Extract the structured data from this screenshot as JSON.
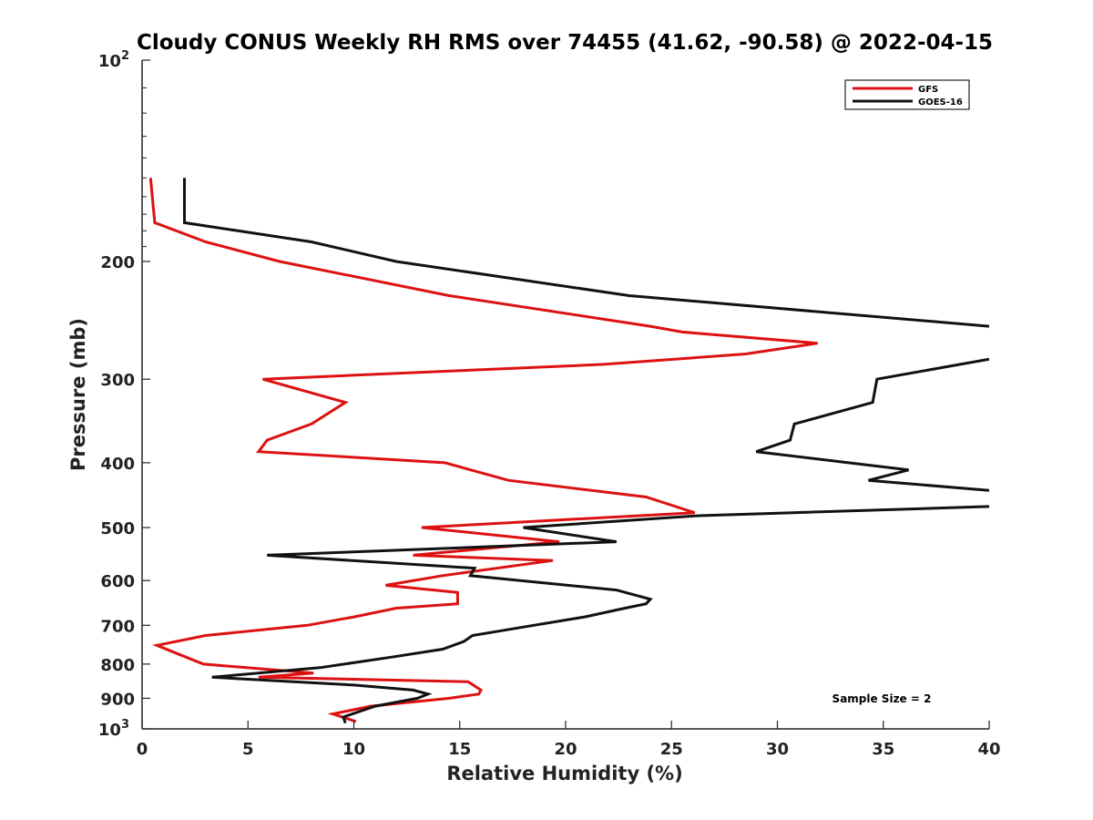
{
  "chart_data": {
    "type": "line",
    "title": "Cloudy CONUS Weekly RH RMS over 74455 (41.62, -90.58) @ 2022-04-15",
    "xlabel": "Relative Humidity (%)",
    "ylabel": "Pressure (mb)",
    "xlim": [
      0,
      40
    ],
    "ylim": [
      100,
      1000
    ],
    "y_scale": "log",
    "y_reversed": true,
    "grid": false,
    "legend_position": "top-right",
    "x_ticks": [
      "0",
      "5",
      "10",
      "15",
      "20",
      "25",
      "30",
      "35",
      "40"
    ],
    "y_ticks": [
      {
        "value": 100,
        "base": "10",
        "exp": "2"
      },
      {
        "value": 200,
        "label": "200"
      },
      {
        "value": 300,
        "label": "300"
      },
      {
        "value": 400,
        "label": "400"
      },
      {
        "value": 500,
        "label": "500"
      },
      {
        "value": 600,
        "label": "600"
      },
      {
        "value": 700,
        "label": "700"
      },
      {
        "value": 800,
        "label": "800"
      },
      {
        "value": 900,
        "label": "900"
      },
      {
        "value": 1000,
        "base": "10",
        "exp": "3"
      }
    ],
    "annotation": "Sample Size = 2",
    "series": [
      {
        "name": "GFS",
        "color": "#dd1111",
        "points": [
          [
            0.4,
            150
          ],
          [
            0.6,
            175
          ],
          [
            3.0,
            187
          ],
          [
            6.5,
            200
          ],
          [
            14.5,
            225
          ],
          [
            24.0,
            250
          ],
          [
            25.5,
            255
          ],
          [
            31.9,
            265
          ],
          [
            28.5,
            275
          ],
          [
            21.8,
            285
          ],
          [
            5.7,
            300
          ],
          [
            9.6,
            325
          ],
          [
            8.0,
            350
          ],
          [
            5.9,
            370
          ],
          [
            5.5,
            385
          ],
          [
            14.3,
            400
          ],
          [
            17.3,
            425
          ],
          [
            23.8,
            450
          ],
          [
            26.1,
            475
          ],
          [
            18.2,
            490
          ],
          [
            13.2,
            500
          ],
          [
            19.7,
            525
          ],
          [
            12.8,
            550
          ],
          [
            19.4,
            560
          ],
          [
            14.2,
            590
          ],
          [
            11.5,
            610
          ],
          [
            14.9,
            625
          ],
          [
            14.9,
            650
          ],
          [
            12.0,
            660
          ],
          [
            10.0,
            680
          ],
          [
            7.8,
            700
          ],
          [
            3.0,
            725
          ],
          [
            0.7,
            750
          ],
          [
            1.8,
            775
          ],
          [
            2.9,
            800
          ],
          [
            8.1,
            825
          ],
          [
            5.5,
            837
          ],
          [
            15.4,
            850
          ],
          [
            16.0,
            875
          ],
          [
            15.9,
            887
          ],
          [
            14.5,
            900
          ],
          [
            10.8,
            925
          ],
          [
            9.0,
            950
          ],
          [
            10.1,
            975
          ]
        ]
      },
      {
        "name": "GOES-16",
        "color": "#111111",
        "points": [
          [
            2.0,
            150
          ],
          [
            2.0,
            175
          ],
          [
            8.0,
            187
          ],
          [
            12.0,
            200
          ],
          [
            23.0,
            225
          ],
          [
            40.0,
            250
          ],
          [
            null,
            null
          ],
          [
            40.0,
            280
          ],
          [
            34.7,
            300
          ],
          [
            34.5,
            325
          ],
          [
            30.8,
            350
          ],
          [
            30.6,
            370
          ],
          [
            29.0,
            385
          ],
          [
            36.2,
            410
          ],
          [
            34.3,
            425
          ],
          [
            40.0,
            440
          ],
          [
            null,
            null
          ],
          [
            40.0,
            465
          ],
          [
            26.3,
            480
          ],
          [
            18.0,
            500
          ],
          [
            22.4,
            525
          ],
          [
            5.9,
            550
          ],
          [
            15.7,
            575
          ],
          [
            15.5,
            590
          ],
          [
            22.4,
            620
          ],
          [
            24.0,
            640
          ],
          [
            23.8,
            650
          ],
          [
            22.8,
            660
          ],
          [
            20.9,
            680
          ],
          [
            18.5,
            700
          ],
          [
            15.6,
            725
          ],
          [
            15.2,
            740
          ],
          [
            14.2,
            760
          ],
          [
            11.9,
            780
          ],
          [
            8.4,
            810
          ],
          [
            3.3,
            837
          ],
          [
            10.0,
            860
          ],
          [
            12.8,
            875
          ],
          [
            13.5,
            887
          ],
          [
            13.0,
            900
          ],
          [
            11.0,
            925
          ],
          [
            9.5,
            960
          ],
          [
            9.6,
            980
          ]
        ]
      }
    ]
  }
}
